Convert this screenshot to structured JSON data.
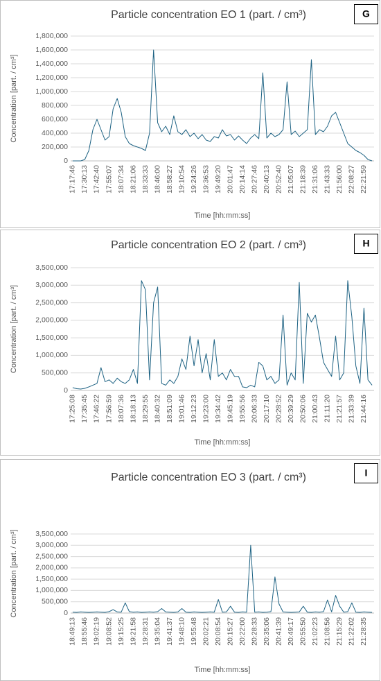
{
  "chart_data": [
    {
      "type": "line",
      "title": "Particle concentration EO 1 (part. / cm³)",
      "annotation": "G",
      "x_label": "Time [hh:mm:ss]",
      "y_label": "Concentration [part. / cm³]",
      "color": "#1d6283",
      "grid": true,
      "categories": [
        "17:17:46",
        null,
        null,
        "17:30:13",
        null,
        null,
        "17:42:40",
        null,
        null,
        "17:55:07",
        null,
        null,
        "18:07:34",
        null,
        null,
        "18:21:06",
        null,
        null,
        "18:33:33",
        null,
        null,
        "18:46:00",
        null,
        null,
        "18:58:27",
        null,
        null,
        "19:10:54",
        null,
        null,
        "19:24:26",
        null,
        null,
        "19:36:53",
        null,
        null,
        "19:49:20",
        null,
        null,
        "20:01:47",
        null,
        null,
        "20:14:14",
        null,
        null,
        "20:27:46",
        null,
        null,
        "20:40:13",
        null,
        null,
        "20:52:40",
        null,
        null,
        "21:05:07",
        null,
        null,
        "21:18:39",
        null,
        null,
        "21:31:06",
        null,
        null,
        "21:43:33",
        null,
        null,
        "21:56:00",
        null,
        null,
        "22:08:27",
        null,
        null,
        "22:21:59",
        null,
        null
      ],
      "values": [
        0,
        0,
        0,
        20000,
        150000,
        450000,
        600000,
        450000,
        300000,
        350000,
        750000,
        900000,
        700000,
        350000,
        250000,
        220000,
        200000,
        180000,
        150000,
        400000,
        1600000,
        550000,
        420000,
        500000,
        380000,
        650000,
        420000,
        380000,
        450000,
        350000,
        400000,
        320000,
        380000,
        300000,
        280000,
        350000,
        330000,
        450000,
        360000,
        380000,
        300000,
        360000,
        300000,
        250000,
        330000,
        380000,
        320000,
        1270000,
        330000,
        400000,
        350000,
        380000,
        450000,
        1140000,
        380000,
        430000,
        350000,
        400000,
        450000,
        1460000,
        380000,
        450000,
        420000,
        500000,
        650000,
        700000,
        550000,
        400000,
        250000,
        200000,
        150000,
        120000,
        80000,
        20000,
        0
      ],
      "ylim": [
        0,
        1800000
      ],
      "yticks": [
        0,
        {
          "value": 200000,
          "label": "200,000"
        },
        {
          "value": 400000,
          "label": "400,000"
        },
        {
          "value": 600000,
          "label": "600,000"
        },
        {
          "value": 800000,
          "label": "800,000"
        },
        {
          "value": 1000000,
          "label": "1,000,000"
        },
        {
          "value": 1200000,
          "label": "1,200,000"
        },
        {
          "value": 1400000,
          "label": "1,400,000"
        },
        {
          "value": 1600000,
          "label": "1,600,000"
        },
        {
          "value": 1800000,
          "label": "1,800,000"
        }
      ]
    },
    {
      "type": "line",
      "title": "Particle concentration EO 2 (part. / cm³)",
      "annotation": "H",
      "x_label": "Time [hh:mm:ss]",
      "y_label": "Concentration [part. / cm³]",
      "color": "#1d6283",
      "grid": true,
      "categories": [
        "17:25:08",
        null,
        null,
        "17:35:45",
        null,
        null,
        "17:46:22",
        null,
        null,
        "17:56:59",
        null,
        null,
        "18:07:36",
        null,
        null,
        "18:18:13",
        null,
        null,
        "18:29:55",
        null,
        null,
        "18:40:32",
        null,
        null,
        "18:51:09",
        null,
        null,
        "19:01:46",
        null,
        null,
        "19:12:23",
        null,
        null,
        "19:23:00",
        null,
        null,
        "19:34:42",
        null,
        null,
        "19:45:19",
        null,
        null,
        "19:55:56",
        null,
        null,
        "20:06:33",
        null,
        null,
        "20:17:10",
        null,
        null,
        "20:28:52",
        null,
        null,
        "20:39:29",
        null,
        null,
        "20:50:06",
        null,
        null,
        "21:00:43",
        null,
        null,
        "21:11:20",
        null,
        null,
        "21:21:57",
        null,
        null,
        "21:33:39",
        null,
        null,
        "21:44:16",
        null,
        null
      ],
      "values": [
        80000,
        50000,
        40000,
        60000,
        100000,
        150000,
        200000,
        650000,
        250000,
        300000,
        200000,
        350000,
        250000,
        200000,
        300000,
        600000,
        200000,
        3130000,
        2870000,
        300000,
        2500000,
        2950000,
        200000,
        150000,
        300000,
        200000,
        400000,
        900000,
        600000,
        1550000,
        700000,
        1450000,
        500000,
        1050000,
        300000,
        1450000,
        400000,
        500000,
        300000,
        600000,
        400000,
        400000,
        100000,
        80000,
        150000,
        100000,
        800000,
        700000,
        300000,
        400000,
        200000,
        300000,
        2150000,
        150000,
        500000,
        300000,
        3080000,
        200000,
        2200000,
        1950000,
        2150000,
        1500000,
        800000,
        600000,
        400000,
        1550000,
        300000,
        500000,
        3130000,
        2100000,
        700000,
        200000,
        2350000,
        300000,
        150000
      ],
      "ylim": [
        0,
        3500000
      ],
      "yticks": [
        0,
        {
          "value": 500000,
          "label": "500,000"
        },
        {
          "value": 1000000,
          "label": "1,000,000"
        },
        {
          "value": 1500000,
          "label": "1,500,000"
        },
        {
          "value": 2000000,
          "label": "2,000,000"
        },
        {
          "value": 2500000,
          "label": "2,500,000"
        },
        {
          "value": 3000000,
          "label": "3,000,000"
        },
        {
          "value": 3500000,
          "label": "3,500,000"
        }
      ]
    },
    {
      "type": "line",
      "title": "Particle concentration EO 3 (part. / cm³)",
      "annotation": "I",
      "x_label": "Time [hh:mm:ss]",
      "y_label": "Concentration [part. / cm³]",
      "color": "#1d6283",
      "grid": true,
      "categories": [
        "18:49:13",
        null,
        null,
        "18:55:46",
        null,
        null,
        "19:02:19",
        null,
        null,
        "19:08:52",
        null,
        null,
        "19:15:25",
        null,
        null,
        "19:21:58",
        null,
        null,
        "19:28:31",
        null,
        null,
        "19:35:04",
        null,
        null,
        "19:41:37",
        null,
        null,
        "19:48:10",
        null,
        null,
        "19:55:48",
        null,
        null,
        "20:02:21",
        null,
        null,
        "20:08:54",
        null,
        null,
        "20:15:27",
        null,
        null,
        "20:22:00",
        null,
        null,
        "20:28:33",
        null,
        null,
        "20:35:06",
        null,
        null,
        "20:41:39",
        null,
        null,
        "20:49:17",
        null,
        null,
        "20:55:50",
        null,
        null,
        "21:02:23",
        null,
        null,
        "21:08:56",
        null,
        null,
        "21:15:29",
        null,
        null,
        "21:22:02",
        null,
        null,
        "21:28:35",
        null,
        null
      ],
      "values": [
        40000,
        30000,
        50000,
        40000,
        30000,
        40000,
        50000,
        40000,
        30000,
        60000,
        150000,
        50000,
        40000,
        450000,
        60000,
        40000,
        50000,
        30000,
        40000,
        50000,
        40000,
        60000,
        200000,
        50000,
        40000,
        30000,
        50000,
        200000,
        40000,
        30000,
        50000,
        40000,
        30000,
        40000,
        50000,
        40000,
        600000,
        40000,
        50000,
        300000,
        40000,
        30000,
        50000,
        40000,
        3000000,
        40000,
        50000,
        30000,
        40000,
        60000,
        1600000,
        400000,
        50000,
        40000,
        30000,
        40000,
        50000,
        300000,
        40000,
        30000,
        50000,
        40000,
        60000,
        580000,
        50000,
        780000,
        300000,
        40000,
        60000,
        450000,
        40000,
        30000,
        50000,
        40000,
        30000
      ],
      "ylim": [
        0,
        3500000
      ],
      "yticks": [
        0,
        {
          "value": 500000,
          "label": "500,000"
        },
        {
          "value": 1000000,
          "label": "1,000,000"
        },
        {
          "value": 1500000,
          "label": "1,500,000"
        },
        {
          "value": 2000000,
          "label": "2,000,000"
        },
        {
          "value": 2500000,
          "label": "2,500,000"
        },
        {
          "value": 3000000,
          "label": "3,000,000"
        },
        {
          "value": 3500000,
          "label": "3,500,000"
        }
      ]
    }
  ]
}
